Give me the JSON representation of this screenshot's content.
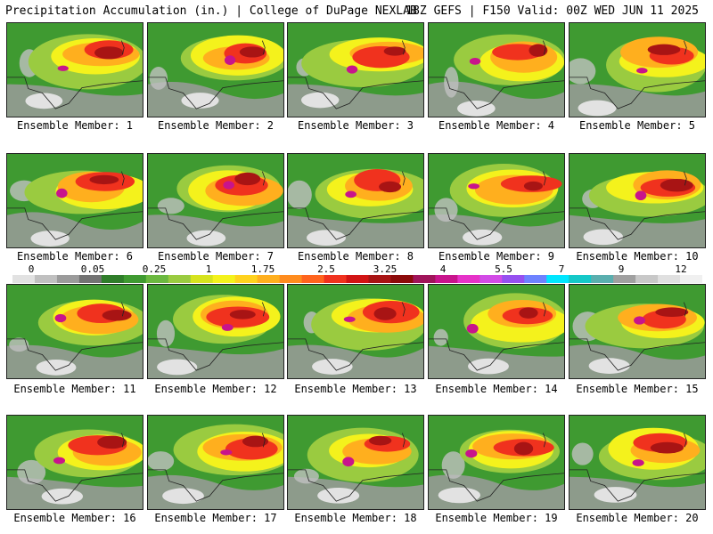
{
  "header": {
    "left": "Precipitation Accumulation (in.) | College of DuPage NEXLAB",
    "right": "18Z GEFS | F150 Valid: 00Z WED JUN 11 2025"
  },
  "colorbar": {
    "labels": [
      "0",
      "0.05",
      "0.25",
      "1",
      "1.75",
      "2.5",
      "3.25",
      "4",
      "5.5",
      "7",
      "9",
      "12"
    ],
    "colors": [
      "#e2e2e2",
      "#c0c0c0",
      "#9b9b9b",
      "#737373",
      "#2f7d2a",
      "#3f9a31",
      "#6bb840",
      "#9acb40",
      "#d6e31e",
      "#f4f21c",
      "#ffd21e",
      "#ffaf1e",
      "#ff8c1e",
      "#ff641e",
      "#f0321e",
      "#d21414",
      "#a81414",
      "#8c0a0a",
      "#a0145a",
      "#c8148c",
      "#e632c8",
      "#d24be6",
      "#9650f0",
      "#6e82ff",
      "#00e6ff",
      "#14c8c8",
      "#5aafaf",
      "#a0a0a0",
      "#c8c8c8",
      "#e0e0e0",
      "#f0f0f0"
    ]
  },
  "members": [
    {
      "label": "Ensemble Member: 1"
    },
    {
      "label": "Ensemble Member: 2"
    },
    {
      "label": "Ensemble Member: 3"
    },
    {
      "label": "Ensemble Member: 4"
    },
    {
      "label": "Ensemble Member: 5"
    },
    {
      "label": "Ensemble Member: 6"
    },
    {
      "label": "Ensemble Member: 7"
    },
    {
      "label": "Ensemble Member: 8"
    },
    {
      "label": "Ensemble Member: 9"
    },
    {
      "label": "Ensemble Member: 10"
    },
    {
      "label": "Ensemble Member: 11"
    },
    {
      "label": "Ensemble Member: 12"
    },
    {
      "label": "Ensemble Member: 13"
    },
    {
      "label": "Ensemble Member: 14"
    },
    {
      "label": "Ensemble Member: 15"
    },
    {
      "label": "Ensemble Member: 16"
    },
    {
      "label": "Ensemble Member: 17"
    },
    {
      "label": "Ensemble Member: 18"
    },
    {
      "label": "Ensemble Member: 19"
    },
    {
      "label": "Ensemble Member: 20"
    }
  ]
}
